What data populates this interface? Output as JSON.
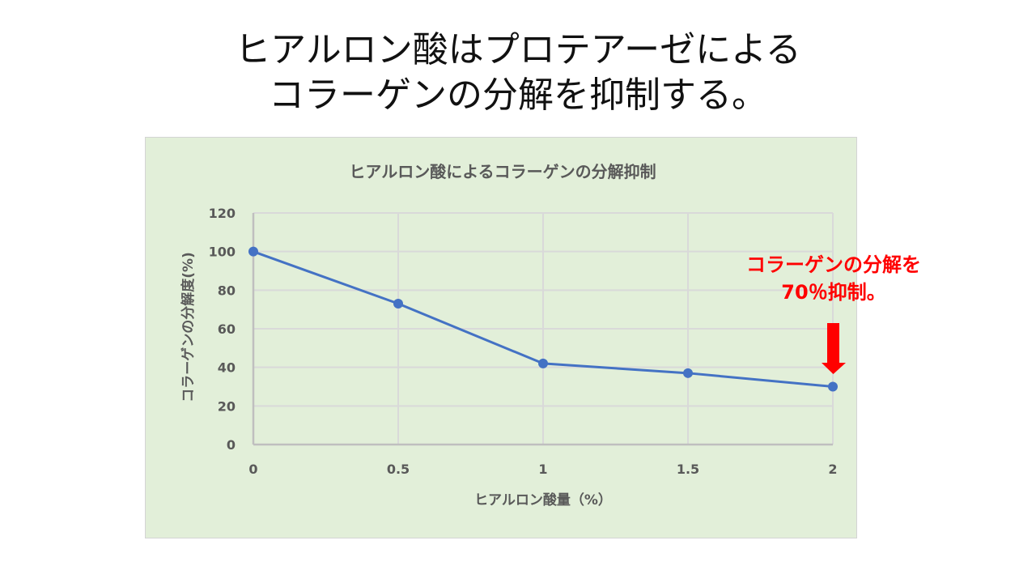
{
  "slide": {
    "title_lines": [
      "ヒアルロン酸はプロテアーゼによる",
      "コラーゲンの分解を抑制する。"
    ]
  },
  "callout": {
    "lines": [
      "コラーゲンの分解を",
      "70％抑制。"
    ],
    "color": "#ff0000",
    "arrow": "down-arrow"
  },
  "colors": {
    "panel_background": "#e2efd9",
    "series": "#4472c4",
    "gridline": "#d9d9d9",
    "axis_text": "#595959",
    "annotation": "#ff0000"
  },
  "chart_data": {
    "type": "line",
    "title": "ヒアルロン酸によるコラーゲンの分解抑制",
    "xlabel": "ヒアルロン酸量（%）",
    "ylabel": "コラーゲンの分解度(%)",
    "x": [
      0,
      0.5,
      1,
      1.5,
      2
    ],
    "x_tick_labels": [
      "0",
      "0.5",
      "1",
      "1.5",
      "2"
    ],
    "y_tick_labels": [
      "0",
      "20",
      "40",
      "60",
      "80",
      "100",
      "120"
    ],
    "ylim": [
      0,
      120
    ],
    "xlim": [
      0,
      2
    ],
    "grid": true,
    "legend": "none",
    "series": [
      {
        "name": "コラーゲンの分解度",
        "values": [
          100,
          73,
          42,
          37,
          30
        ],
        "color": "#4472c4",
        "markers": true
      }
    ],
    "annotations": [
      {
        "text": "コラーゲンの分解を70％抑制。",
        "points_to": {
          "x": 2,
          "y": 30
        }
      }
    ]
  }
}
